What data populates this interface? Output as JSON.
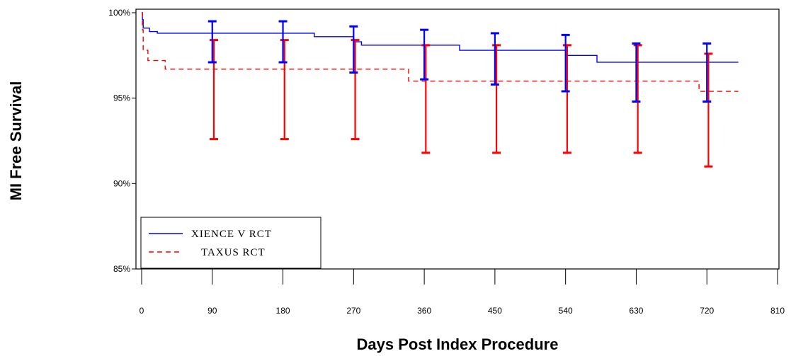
{
  "chart_data": {
    "type": "line",
    "title": "",
    "xlabel": "Days Post Index Procedure",
    "ylabel": "MI Free Survival",
    "xlim": [
      0,
      810
    ],
    "ylim": [
      85,
      100
    ],
    "xticks": [
      0,
      90,
      180,
      270,
      360,
      450,
      540,
      630,
      720,
      810
    ],
    "xtick_labels": [
      "0",
      "90",
      "180",
      "270",
      "360",
      "450",
      "540",
      "630",
      "720",
      "810"
    ],
    "yticks": [
      85,
      90,
      95,
      100
    ],
    "ytick_labels": [
      "85%",
      "90%",
      "95%",
      "100%"
    ],
    "step": true,
    "grid": false,
    "legend_position": "bottom-left",
    "series": [
      {
        "name": "XIENCE V RCT",
        "color": "#0000ff",
        "line_style": "solid",
        "x": [
          0,
          1,
          2,
          10,
          20,
          90,
          180,
          220,
          240,
          270,
          280,
          360,
          380,
          405,
          450,
          470,
          520,
          540,
          555,
          580,
          600,
          630,
          690,
          720,
          760
        ],
        "y": [
          100,
          99.6,
          99.1,
          98.9,
          98.8,
          98.8,
          98.8,
          98.6,
          98.6,
          98.3,
          98.1,
          98.1,
          98.1,
          97.8,
          97.8,
          97.8,
          97.8,
          97.5,
          97.5,
          97.1,
          97.1,
          97.1,
          97.1,
          97.1,
          97.1
        ],
        "error_bars": [
          {
            "x": 90,
            "lower": 97.1,
            "upper": 99.5
          },
          {
            "x": 180,
            "lower": 97.1,
            "upper": 99.5
          },
          {
            "x": 270,
            "lower": 96.5,
            "upper": 99.2
          },
          {
            "x": 360,
            "lower": 96.1,
            "upper": 99.0
          },
          {
            "x": 450,
            "lower": 95.8,
            "upper": 98.8
          },
          {
            "x": 540,
            "lower": 95.4,
            "upper": 98.7
          },
          {
            "x": 630,
            "lower": 94.8,
            "upper": 98.2
          },
          {
            "x": 720,
            "lower": 94.8,
            "upper": 98.2
          }
        ]
      },
      {
        "name": "TAXUS RCT",
        "color": "#ff0000",
        "line_style": "dashed",
        "x": [
          0,
          1,
          2,
          8,
          30,
          90,
          180,
          270,
          330,
          340,
          360,
          450,
          540,
          630,
          700,
          710,
          720,
          760
        ],
        "y": [
          100,
          99.0,
          97.8,
          97.2,
          96.7,
          96.7,
          96.7,
          96.7,
          96.7,
          96.0,
          96.0,
          96.0,
          96.0,
          96.0,
          96.0,
          95.4,
          95.4,
          95.4
        ],
        "error_bars": [
          {
            "x": 92,
            "lower": 92.6,
            "upper": 98.4
          },
          {
            "x": 182,
            "lower": 92.6,
            "upper": 98.4
          },
          {
            "x": 272,
            "lower": 92.6,
            "upper": 98.4
          },
          {
            "x": 362,
            "lower": 91.8,
            "upper": 98.1
          },
          {
            "x": 452,
            "lower": 91.8,
            "upper": 98.1
          },
          {
            "x": 542,
            "lower": 91.8,
            "upper": 98.1
          },
          {
            "x": 632,
            "lower": 91.8,
            "upper": 98.1
          },
          {
            "x": 722,
            "lower": 91.0,
            "upper": 97.6
          }
        ]
      }
    ]
  }
}
